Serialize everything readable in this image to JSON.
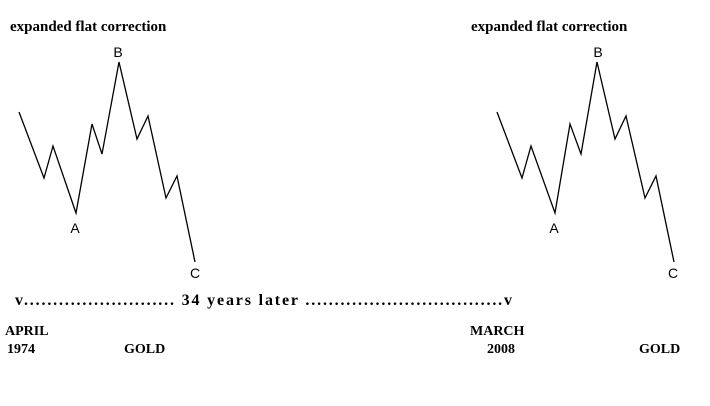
{
  "left": {
    "title": "expanded flat correction",
    "wave_labels": [
      "A",
      "B",
      "C"
    ],
    "month": "APRIL",
    "year": "1974",
    "market": "GOLD"
  },
  "right": {
    "title": "expanded flat correction",
    "wave_labels": [
      "A",
      "B",
      "C"
    ],
    "month": "MARCH",
    "year": "2008",
    "market": "GOLD"
  },
  "timeline": "v.......................... 34 years later ..................................v"
}
